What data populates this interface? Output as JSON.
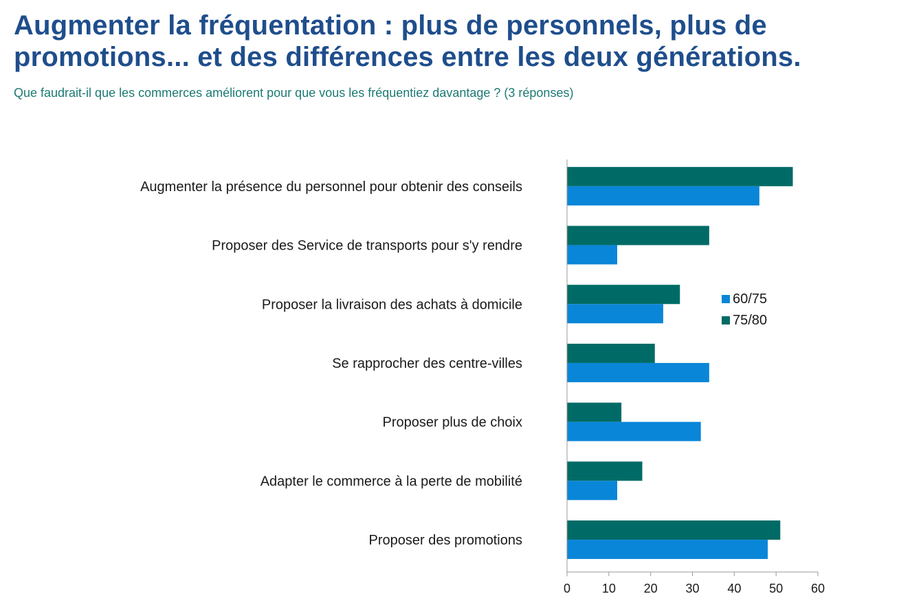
{
  "page": {
    "title": "Augmenter la fréquentation : plus de personnels, plus de promotions... et des différences entre les deux générations.",
    "subtitle": "Que faudrait-il que les commerces améliorent pour que vous les fréquentiez davantage ? (3 réponses)"
  },
  "chart_data": {
    "type": "bar",
    "orientation": "horizontal",
    "categories": [
      "Augmenter la présence du personnel pour obtenir des conseils",
      "Proposer des Service de transports pour s'y rendre",
      "Proposer la livraison des achats à domicile",
      "Se rapprocher des centre-villes",
      "Proposer plus de choix",
      "Adapter le commerce à la perte de mobilité",
      "Proposer des promotions"
    ],
    "series": [
      {
        "name": "75/80",
        "color": "#006b66",
        "values": [
          54,
          34,
          27,
          21,
          13,
          18,
          51
        ]
      },
      {
        "name": "60/75",
        "color": "#0a86d8",
        "values": [
          46,
          12,
          23,
          34,
          32,
          12,
          48
        ]
      }
    ],
    "legend_order": [
      "60/75",
      "75/80"
    ],
    "xlim": [
      0,
      60
    ],
    "xticks": [
      0,
      10,
      20,
      30,
      40,
      50,
      60
    ],
    "grid": false,
    "legend_position": "right"
  }
}
